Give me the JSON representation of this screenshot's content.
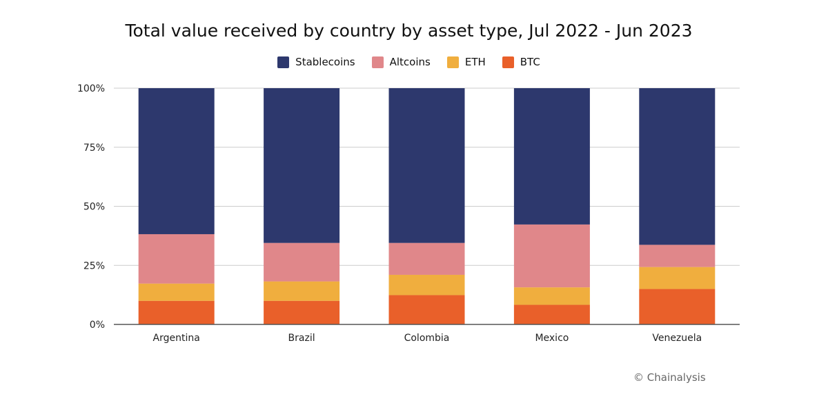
{
  "chart_data": {
    "type": "bar",
    "stacked": true,
    "title": "Total value received by country by asset type, Jul 2022 - Jun 2023",
    "xlabel": "",
    "ylabel": "",
    "ylim": [
      0,
      100
    ],
    "yticks": [
      "0%",
      "25%",
      "50%",
      "75%",
      "100%"
    ],
    "grid": true,
    "legend_position": "top",
    "categories": [
      "Argentina",
      "Brazil",
      "Colombia",
      "Mexico",
      "Venezuela"
    ],
    "series": [
      {
        "name": "BTC",
        "color": "#e9602a",
        "values": [
          10.0,
          10.0,
          12.4,
          8.3,
          15.0
        ]
      },
      {
        "name": "ETH",
        "color": "#f0ae3e",
        "values": [
          7.3,
          8.2,
          8.6,
          7.4,
          9.3
        ]
      },
      {
        "name": "Altcoins",
        "color": "#e0878a",
        "values": [
          20.9,
          16.3,
          13.5,
          26.6,
          9.4
        ]
      },
      {
        "name": "Stablecoins",
        "color": "#2d386d",
        "values": [
          61.8,
          65.5,
          65.5,
          57.7,
          66.3
        ]
      }
    ],
    "legend_order": [
      "Stablecoins",
      "Altcoins",
      "ETH",
      "BTC"
    ]
  },
  "credit": "© Chainalysis"
}
